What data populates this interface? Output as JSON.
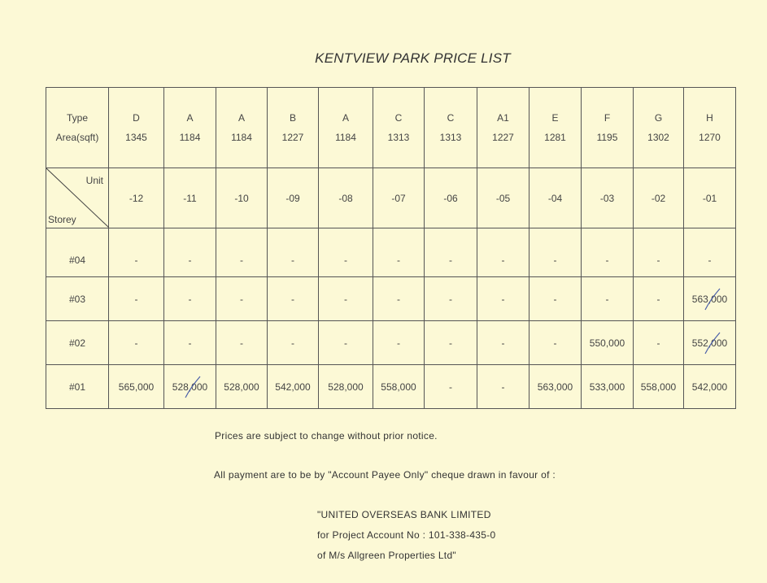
{
  "title": "KENTVIEW PARK PRICE LIST",
  "table": {
    "type_label": "Type",
    "area_label": "Area(sqft)",
    "unit_label": "Unit",
    "storey_label": "Storey",
    "columns": [
      {
        "type": "D",
        "area": "1345",
        "unit": "-12"
      },
      {
        "type": "A",
        "area": "1184",
        "unit": "-11"
      },
      {
        "type": "A",
        "area": "1184",
        "unit": "-10"
      },
      {
        "type": "B",
        "area": "1227",
        "unit": "-09"
      },
      {
        "type": "A",
        "area": "1184",
        "unit": "-08"
      },
      {
        "type": "C",
        "area": "1313",
        "unit": "-07"
      },
      {
        "type": "C",
        "area": "1313",
        "unit": "-06"
      },
      {
        "type": "A1",
        "area": "1227",
        "unit": "-05"
      },
      {
        "type": "E",
        "area": "1281",
        "unit": "-04"
      },
      {
        "type": "F",
        "area": "1195",
        "unit": "-03"
      },
      {
        "type": "G",
        "area": "1302",
        "unit": "-02"
      },
      {
        "type": "H",
        "area": "1270",
        "unit": "-01"
      }
    ],
    "rows": [
      {
        "storey": "#04",
        "prices": [
          "-",
          "-",
          "-",
          "-",
          "-",
          "-",
          "-",
          "-",
          "-",
          "-",
          "-",
          "-"
        ],
        "struck": []
      },
      {
        "storey": "#03",
        "prices": [
          "-",
          "-",
          "-",
          "-",
          "-",
          "-",
          "-",
          "-",
          "-",
          "-",
          "-",
          "563,000"
        ],
        "struck": [
          11
        ]
      },
      {
        "storey": "#02",
        "prices": [
          "-",
          "-",
          "-",
          "-",
          "-",
          "-",
          "-",
          "-",
          "-",
          "550,000",
          "-",
          "552,000"
        ],
        "struck": [
          11
        ]
      },
      {
        "storey": "#01",
        "prices": [
          "565,000",
          "528,000",
          "528,000",
          "542,000",
          "528,000",
          "558,000",
          "-",
          "-",
          "563,000",
          "533,000",
          "558,000",
          "542,000"
        ],
        "struck": [
          1
        ]
      }
    ]
  },
  "notes": {
    "line1": "Prices are subject to change without prior notice.",
    "line2": "All payment are to be by \"Account Payee Only\" cheque drawn in favour of :",
    "payee1": "\"UNITED OVERSEAS BANK LIMITED",
    "payee2": "for Project Account No : 101-338-435-0",
    "payee3": "of M/s Allgreen Properties Ltd\""
  },
  "colors": {
    "paper": "#fcf9d6",
    "pen_mark": "#4a5fa8"
  }
}
